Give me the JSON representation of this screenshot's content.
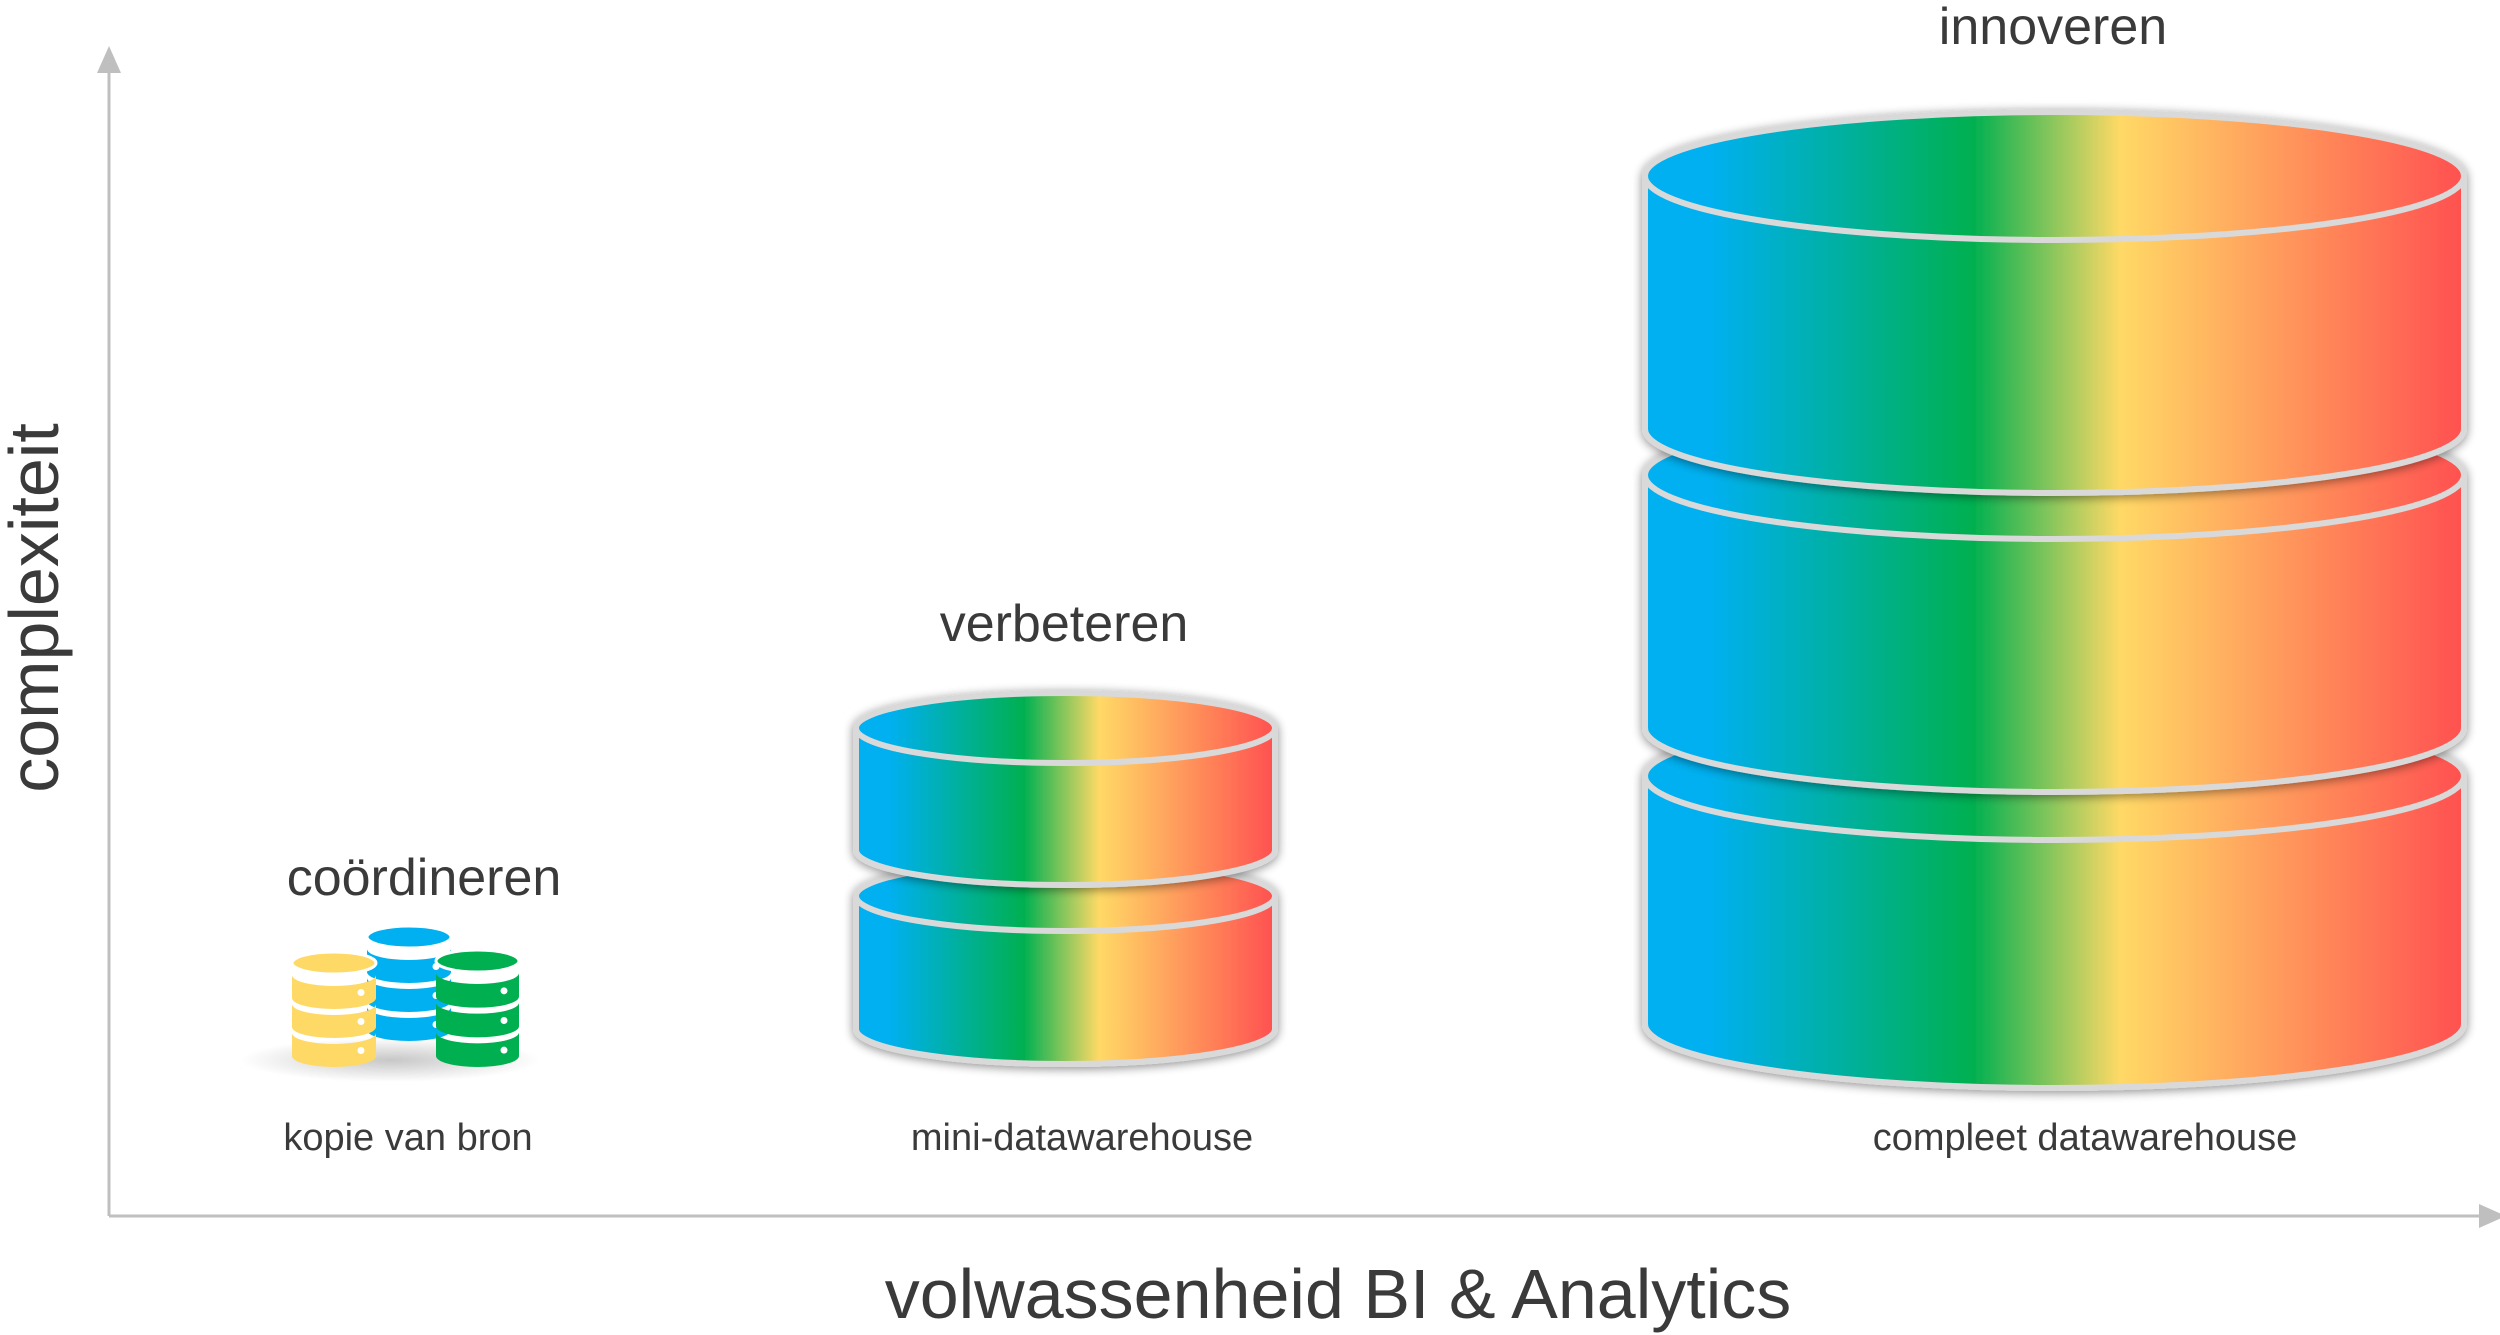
{
  "axes": {
    "x_label": "volwassenheid BI & Analytics",
    "y_label": "complexiteit"
  },
  "stages": [
    {
      "title": "coördineren",
      "label": "kopie van bron",
      "icon": "database-stack-icon",
      "layers": 1
    },
    {
      "title": "verbeteren",
      "label": "mini-datawarehouse",
      "icon": "database-cylinder-icon",
      "layers": 2
    },
    {
      "title": "innoveren",
      "label": "compleet datawarehouse",
      "icon": "database-cylinder-icon",
      "layers": 3
    }
  ],
  "colors": {
    "gradient": [
      "#00b0f0",
      "#00b050",
      "#ffd966",
      "#ff5050"
    ],
    "small_db": [
      "#ffd966",
      "#00b0f0",
      "#00b050"
    ],
    "outline": "#d9d9d9",
    "axis": "#bfbfbf",
    "text": "#3a3a3a"
  }
}
